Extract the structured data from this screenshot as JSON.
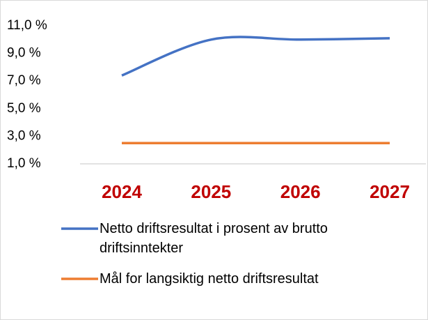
{
  "chart_data": {
    "type": "line",
    "categories": [
      "2024",
      "2025",
      "2026",
      "2027"
    ],
    "series": [
      {
        "name": "Netto driftsresultat i prosent av brutto driftsinntekter",
        "color": "#4472c4",
        "values": [
          7.4,
          10.0,
          10.0,
          10.1
        ]
      },
      {
        "name": "Mål for langsiktig netto driftsresultat",
        "color": "#ed7d31",
        "values": [
          2.5,
          2.5,
          2.5,
          2.5
        ]
      }
    ],
    "ylim": [
      1,
      11
    ],
    "yticks": [
      {
        "value": 1,
        "label": "1,0 %"
      },
      {
        "value": 3,
        "label": "3,0 %"
      },
      {
        "value": 5,
        "label": "5,0 %"
      },
      {
        "value": 7,
        "label": "7,0 %"
      },
      {
        "value": 9,
        "label": "9,0 %"
      },
      {
        "value": 11,
        "label": "11,0 %"
      }
    ],
    "category_label_color": "#c00000"
  }
}
